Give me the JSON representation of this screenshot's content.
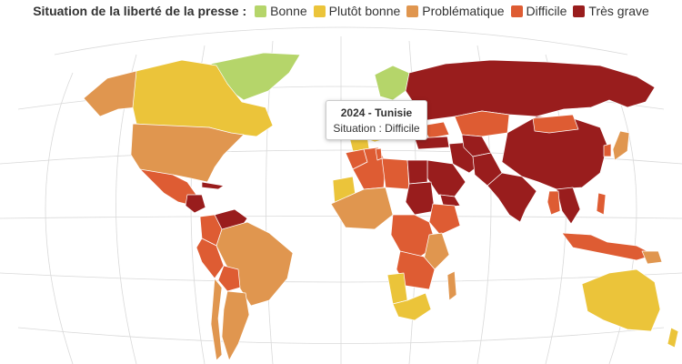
{
  "legend": {
    "title": "Situation de la liberté de la presse :",
    "items": [
      {
        "label": "Bonne",
        "color": "#b5d56a"
      },
      {
        "label": "Plutôt bonne",
        "color": "#ebc43a"
      },
      {
        "label": "Problématique",
        "color": "#e0964f"
      },
      {
        "label": "Difficile",
        "color": "#de5c33"
      },
      {
        "label": "Très grave",
        "color": "#991d1d"
      }
    ]
  },
  "tooltip": {
    "title": "2024 - Tunisie",
    "situation": "Situation : Difficile"
  },
  "colors": {
    "bonne": "#b5d56a",
    "plutot_bonne": "#ebc43a",
    "problematique": "#e0964f",
    "difficile": "#de5c33",
    "tres_grave": "#991d1d",
    "ocean": "#ffffff",
    "graticule": "#d9d9d9"
  },
  "highlighted_country": "Tunisie"
}
